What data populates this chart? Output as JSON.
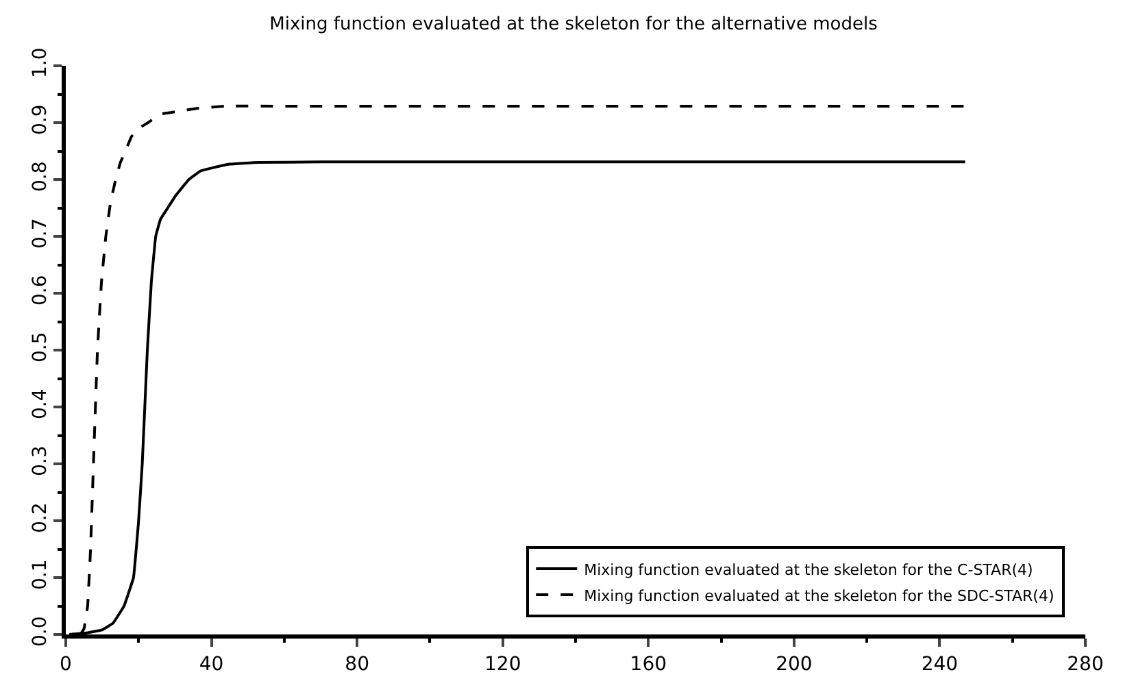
{
  "chart_data": {
    "type": "line",
    "title": "Mixing function evaluated at the skeleton for the alternative models",
    "xlim": [
      0,
      280
    ],
    "xticks": [
      0,
      40,
      80,
      120,
      160,
      200,
      240,
      280
    ],
    "ylim": [
      0,
      1
    ],
    "yticks": [
      {
        "value": 0,
        "label": "0.0"
      },
      0.1,
      0.2,
      0.3,
      0.4,
      0.5,
      0.6,
      0.7,
      0.8,
      0.9,
      {
        "value": 1,
        "label": "1.0"
      }
    ],
    "legend": "bottom right",
    "series": [
      {
        "name": "Mixing function evaluated at the skeleton for the C-STAR(4)",
        "color": "#000000",
        "line_style": "solid",
        "x": [
          1,
          5,
          10,
          13,
          16,
          18.6,
          20,
          21,
          22.4,
          23.5,
          24.7,
          26,
          28,
          30,
          33.8,
          37,
          40,
          45,
          53,
          70,
          100,
          150,
          200,
          247
        ],
        "values": [
          0,
          0.002,
          0.008,
          0.02,
          0.05,
          0.1,
          0.2,
          0.3,
          0.5,
          0.62,
          0.7,
          0.73,
          0.75,
          0.77,
          0.8,
          0.815,
          0.82,
          0.827,
          0.83,
          0.831,
          0.831,
          0.831,
          0.831,
          0.831
        ]
      },
      {
        "name": "Mixing function evaluated at the skeleton for the SDC-STAR(4)",
        "color": "#000000",
        "line_style": "dashed",
        "x": [
          4,
          5,
          6,
          6.8,
          7.6,
          8.7,
          9.8,
          11,
          12.3,
          13.7,
          15,
          16.4,
          18,
          20,
          22.6,
          26,
          31,
          36,
          43.6,
          60,
          100,
          150,
          200,
          247
        ],
        "values": [
          0,
          0.01,
          0.05,
          0.15,
          0.3,
          0.5,
          0.62,
          0.7,
          0.76,
          0.8,
          0.83,
          0.85,
          0.875,
          0.89,
          0.9,
          0.915,
          0.92,
          0.925,
          0.929,
          0.929,
          0.929,
          0.929,
          0.929,
          0.929
        ]
      }
    ]
  }
}
